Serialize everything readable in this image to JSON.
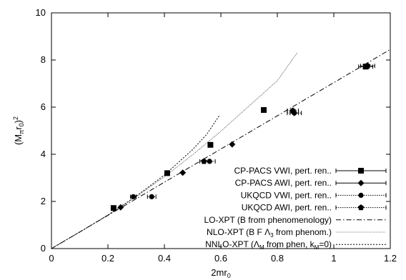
{
  "chart_data": {
    "type": "scatter",
    "xlabel": "2mr₀",
    "ylabel": "(Mπr₀)²",
    "xlim": [
      0,
      1.2
    ],
    "ylim": [
      0,
      10
    ],
    "xticks": [
      "0",
      "0.2",
      "0.4",
      "0.6",
      "0.8",
      "1",
      "1.2"
    ],
    "yticks": [
      "0",
      "2",
      "4",
      "6",
      "8",
      "10"
    ],
    "legend_position": "bottom-right",
    "grid": false,
    "series": [
      {
        "name": "CP-PACS VWI, pert. ren..",
        "marker": "square",
        "errorbar_style": "solid",
        "points": [
          {
            "x": 0.22,
            "y": 1.72,
            "xerr": 0
          },
          {
            "x": 0.41,
            "y": 3.2,
            "xerr": 0
          },
          {
            "x": 0.563,
            "y": 4.4,
            "xerr": 0
          },
          {
            "x": 0.752,
            "y": 5.88,
            "xerr": 0
          },
          {
            "x": 1.113,
            "y": 7.72,
            "xerr": 0.025
          }
        ]
      },
      {
        "name": "CP-PACS AWI, pert. ren..",
        "marker": "diamond",
        "errorbar_style": "solid",
        "points": [
          {
            "x": 0.245,
            "y": 1.75,
            "xerr": 0
          },
          {
            "x": 0.465,
            "y": 3.22,
            "xerr": 0
          },
          {
            "x": 0.64,
            "y": 4.42,
            "xerr": 0
          },
          {
            "x": 0.86,
            "y": 5.75,
            "xerr": 0.015
          }
        ]
      },
      {
        "name": "UKQCD VWI, pert. ren..",
        "marker": "circle",
        "errorbar_style": "dotted",
        "points": [
          {
            "x": 0.29,
            "y": 2.2,
            "xerr": 0.01
          },
          {
            "x": 0.355,
            "y": 2.2,
            "xerr": 0.015
          },
          {
            "x": 0.56,
            "y": 3.7,
            "xerr": 0.02
          },
          {
            "x": 0.86,
            "y": 5.75,
            "xerr": 0.025
          }
        ]
      },
      {
        "name": "UKQCD AWI, pert. ren..",
        "marker": "pentagon",
        "errorbar_style": "dotted",
        "points": [
          {
            "x": 0.54,
            "y": 3.7,
            "xerr": 0.015
          },
          {
            "x": 0.855,
            "y": 5.85,
            "xerr": 0.02
          },
          {
            "x": 1.12,
            "y": 7.75,
            "xerr": 0.025
          }
        ]
      }
    ],
    "curves": [
      {
        "name": "LO-XPT (B from phenomenology)",
        "style": "dashdot",
        "points": [
          [
            0,
            0
          ],
          [
            1.2,
            8.45
          ]
        ]
      },
      {
        "name": "NLO-XPT (B F Λ₃ from phenom.)",
        "style": "finedot",
        "points": [
          [
            0,
            0
          ],
          [
            0.1,
            0.7
          ],
          [
            0.2,
            1.42
          ],
          [
            0.3,
            2.2
          ],
          [
            0.4,
            3.05
          ],
          [
            0.5,
            3.98
          ],
          [
            0.6,
            4.98
          ],
          [
            0.7,
            6.05
          ],
          [
            0.8,
            7.12
          ],
          [
            0.87,
            8.3
          ]
        ]
      },
      {
        "name": "NNLO-XPT (ΛM from phen, kM=0)",
        "style": "dotted",
        "points": [
          [
            0,
            0
          ],
          [
            0.1,
            0.7
          ],
          [
            0.2,
            1.42
          ],
          [
            0.3,
            2.22
          ],
          [
            0.4,
            3.12
          ],
          [
            0.5,
            4.2
          ],
          [
            0.55,
            4.85
          ],
          [
            0.595,
            5.65
          ]
        ]
      }
    ]
  }
}
